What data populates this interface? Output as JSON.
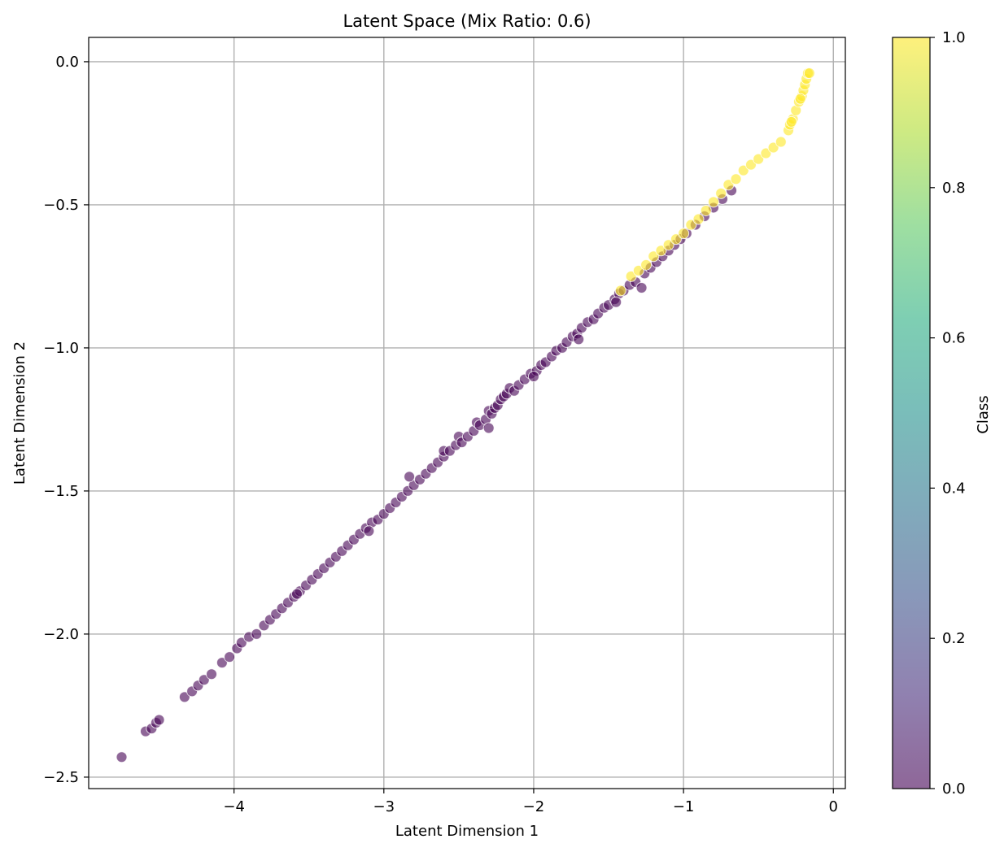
{
  "chart_data": {
    "type": "scatter",
    "title": "Latent Space (Mix Ratio: 0.6)",
    "xlabel": "Latent Dimension 1",
    "ylabel": "Latent Dimension 2",
    "xlim": [
      -4.97,
      0.08
    ],
    "ylim": [
      -2.54,
      0.085
    ],
    "x_ticks": [
      -4,
      -3,
      -2,
      -1,
      0
    ],
    "y_ticks": [
      0.0,
      -0.5,
      -1.0,
      -1.5,
      -2.0,
      -2.5
    ],
    "x_tick_labels": [
      "−4",
      "−3",
      "−2",
      "−1",
      "0"
    ],
    "y_tick_labels": [
      "0.0",
      "−0.5",
      "−1.0",
      "−1.5",
      "−2.0",
      "−2.5"
    ],
    "grid": true,
    "colormap": "viridis",
    "marker_alpha": 0.6,
    "colorbar": {
      "label": "Class",
      "range": [
        0.0,
        1.0
      ],
      "ticks": [
        0.0,
        0.2,
        0.4,
        0.6,
        0.8,
        1.0
      ],
      "tick_labels": [
        "0.0",
        "0.2",
        "0.4",
        "0.6",
        "0.8",
        "1.0"
      ]
    },
    "series": [
      {
        "class_value": 0,
        "color": "#440154",
        "points": [
          [
            -4.75,
            -2.43
          ],
          [
            -4.59,
            -2.34
          ],
          [
            -4.55,
            -2.33
          ],
          [
            -4.52,
            -2.31
          ],
          [
            -4.5,
            -2.3
          ],
          [
            -4.33,
            -2.22
          ],
          [
            -4.28,
            -2.2
          ],
          [
            -4.24,
            -2.18
          ],
          [
            -4.2,
            -2.16
          ],
          [
            -4.15,
            -2.14
          ],
          [
            -4.08,
            -2.1
          ],
          [
            -4.03,
            -2.08
          ],
          [
            -3.98,
            -2.05
          ],
          [
            -3.95,
            -2.03
          ],
          [
            -3.9,
            -2.01
          ],
          [
            -3.85,
            -2.0
          ],
          [
            -3.8,
            -1.97
          ],
          [
            -3.76,
            -1.95
          ],
          [
            -3.72,
            -1.93
          ],
          [
            -3.68,
            -1.91
          ],
          [
            -3.64,
            -1.89
          ],
          [
            -3.6,
            -1.87
          ],
          [
            -3.56,
            -1.85
          ],
          [
            -3.52,
            -1.83
          ],
          [
            -3.48,
            -1.81
          ],
          [
            -3.44,
            -1.79
          ],
          [
            -3.4,
            -1.77
          ],
          [
            -3.36,
            -1.75
          ],
          [
            -3.32,
            -1.73
          ],
          [
            -3.28,
            -1.71
          ],
          [
            -3.24,
            -1.69
          ],
          [
            -3.2,
            -1.67
          ],
          [
            -3.16,
            -1.65
          ],
          [
            -3.12,
            -1.63
          ],
          [
            -3.08,
            -1.61
          ],
          [
            -3.04,
            -1.6
          ],
          [
            -3.0,
            -1.58
          ],
          [
            -2.96,
            -1.56
          ],
          [
            -2.92,
            -1.54
          ],
          [
            -2.88,
            -1.52
          ],
          [
            -2.84,
            -1.5
          ],
          [
            -2.8,
            -1.48
          ],
          [
            -2.83,
            -1.45
          ],
          [
            -2.76,
            -1.46
          ],
          [
            -2.72,
            -1.44
          ],
          [
            -2.68,
            -1.42
          ],
          [
            -2.64,
            -1.4
          ],
          [
            -2.6,
            -1.38
          ],
          [
            -2.6,
            -1.36
          ],
          [
            -2.56,
            -1.36
          ],
          [
            -2.52,
            -1.34
          ],
          [
            -2.5,
            -1.31
          ],
          [
            -2.48,
            -1.33
          ],
          [
            -2.44,
            -1.31
          ],
          [
            -2.4,
            -1.29
          ],
          [
            -2.38,
            -1.26
          ],
          [
            -2.36,
            -1.27
          ],
          [
            -2.32,
            -1.25
          ],
          [
            -2.3,
            -1.22
          ],
          [
            -2.28,
            -1.23
          ],
          [
            -2.26,
            -1.21
          ],
          [
            -2.24,
            -1.2
          ],
          [
            -2.22,
            -1.18
          ],
          [
            -2.2,
            -1.17
          ],
          [
            -2.18,
            -1.16
          ],
          [
            -2.16,
            -1.14
          ],
          [
            -2.13,
            -1.15
          ],
          [
            -2.1,
            -1.13
          ],
          [
            -2.06,
            -1.11
          ],
          [
            -2.02,
            -1.09
          ],
          [
            -1.98,
            -1.08
          ],
          [
            -1.95,
            -1.06
          ],
          [
            -1.92,
            -1.05
          ],
          [
            -1.88,
            -1.03
          ],
          [
            -1.85,
            -1.01
          ],
          [
            -1.81,
            -1.0
          ],
          [
            -1.78,
            -0.98
          ],
          [
            -1.74,
            -0.96
          ],
          [
            -1.71,
            -0.95
          ],
          [
            -1.68,
            -0.93
          ],
          [
            -1.64,
            -0.91
          ],
          [
            -1.6,
            -0.9
          ],
          [
            -1.57,
            -0.88
          ],
          [
            -1.53,
            -0.86
          ],
          [
            -1.5,
            -0.85
          ],
          [
            -1.46,
            -0.83
          ],
          [
            -1.43,
            -0.81
          ],
          [
            -1.4,
            -0.8
          ],
          [
            -1.36,
            -0.78
          ],
          [
            -1.32,
            -0.77
          ],
          [
            -1.28,
            -0.79
          ],
          [
            -1.26,
            -0.74
          ],
          [
            -1.22,
            -0.72
          ],
          [
            -1.18,
            -0.7
          ],
          [
            -1.14,
            -0.68
          ],
          [
            -1.1,
            -0.66
          ],
          [
            -1.06,
            -0.64
          ],
          [
            -1.02,
            -0.62
          ],
          [
            -0.98,
            -0.6
          ],
          [
            -0.92,
            -0.57
          ],
          [
            -0.86,
            -0.54
          ],
          [
            -0.8,
            -0.51
          ],
          [
            -0.74,
            -0.48
          ],
          [
            -0.68,
            -0.45
          ],
          [
            -2.3,
            -1.28
          ],
          [
            -2.0,
            -1.1
          ],
          [
            -1.7,
            -0.97
          ],
          [
            -1.45,
            -0.84
          ],
          [
            -3.1,
            -1.64
          ],
          [
            -3.58,
            -1.86
          ]
        ]
      },
      {
        "class_value": 1,
        "color": "#fde725",
        "points": [
          [
            -1.42,
            -0.8
          ],
          [
            -1.35,
            -0.75
          ],
          [
            -1.3,
            -0.73
          ],
          [
            -1.25,
            -0.71
          ],
          [
            -1.2,
            -0.68
          ],
          [
            -1.15,
            -0.66
          ],
          [
            -1.1,
            -0.64
          ],
          [
            -1.05,
            -0.62
          ],
          [
            -1.0,
            -0.6
          ],
          [
            -0.95,
            -0.57
          ],
          [
            -0.9,
            -0.55
          ],
          [
            -0.85,
            -0.52
          ],
          [
            -0.8,
            -0.49
          ],
          [
            -0.75,
            -0.46
          ],
          [
            -0.7,
            -0.43
          ],
          [
            -0.65,
            -0.41
          ],
          [
            -0.6,
            -0.38
          ],
          [
            -0.55,
            -0.36
          ],
          [
            -0.5,
            -0.34
          ],
          [
            -0.45,
            -0.32
          ],
          [
            -0.4,
            -0.3
          ],
          [
            -0.35,
            -0.28
          ],
          [
            -0.3,
            -0.24
          ],
          [
            -0.29,
            -0.22
          ],
          [
            -0.27,
            -0.2
          ],
          [
            -0.25,
            -0.17
          ],
          [
            -0.23,
            -0.14
          ],
          [
            -0.21,
            -0.12
          ],
          [
            -0.2,
            -0.1
          ],
          [
            -0.19,
            -0.08
          ],
          [
            -0.18,
            -0.06
          ],
          [
            -0.17,
            -0.04
          ],
          [
            -0.16,
            -0.04
          ],
          [
            -0.28,
            -0.21
          ],
          [
            -0.22,
            -0.13
          ]
        ]
      }
    ]
  }
}
